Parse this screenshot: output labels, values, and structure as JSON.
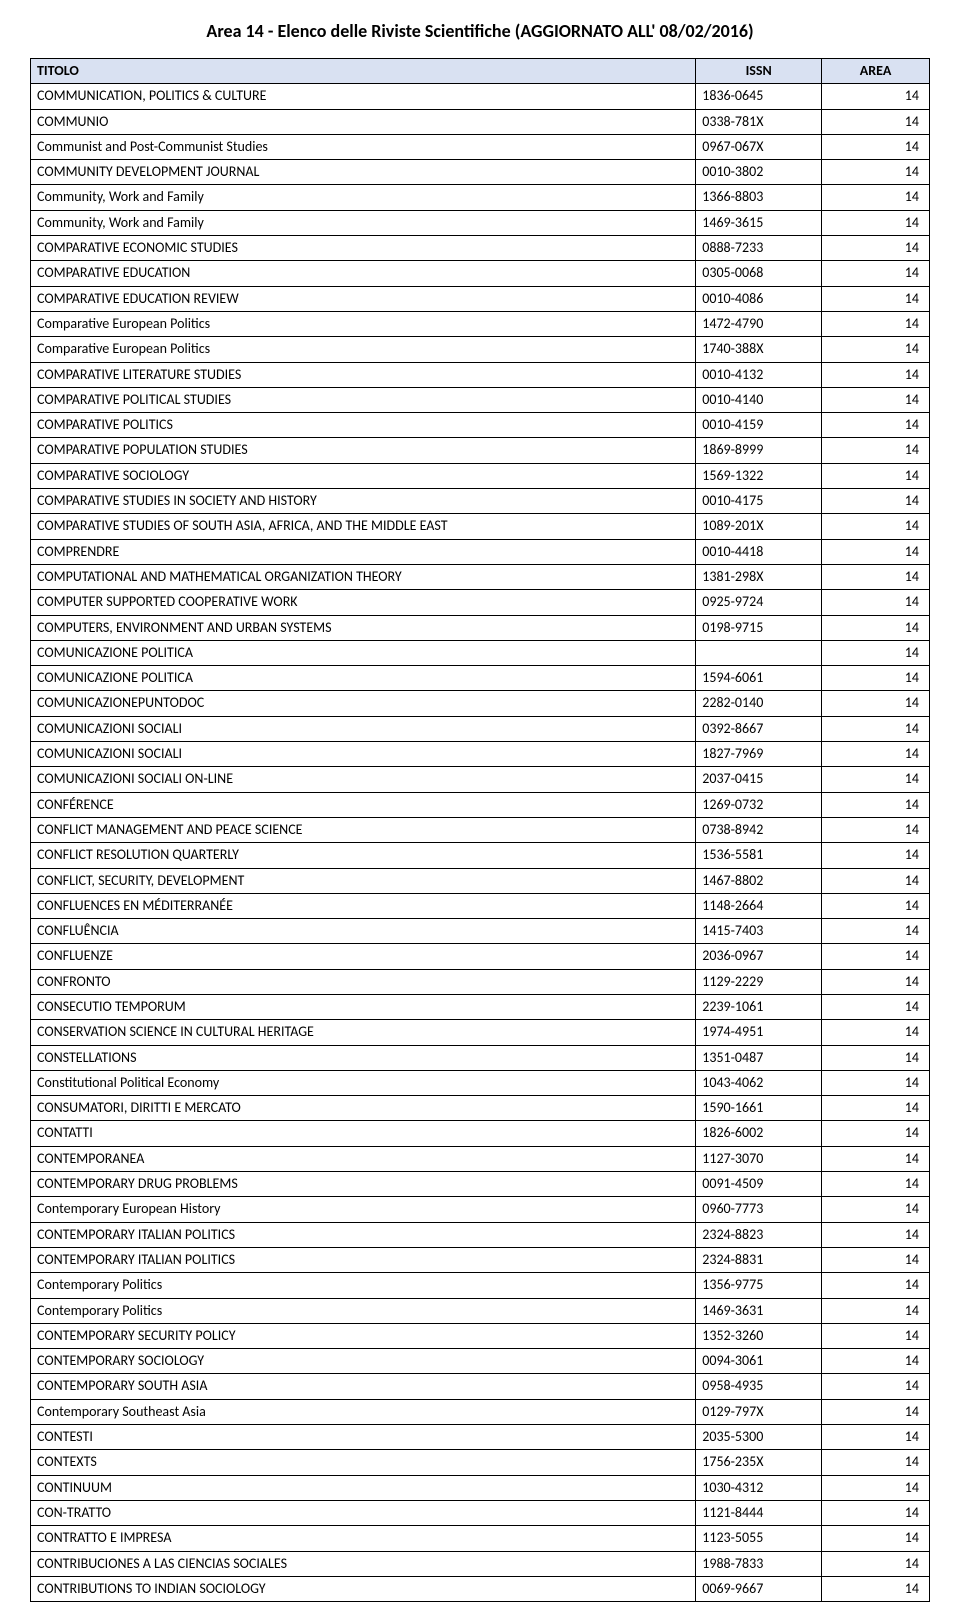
{
  "page_title": "Area 14 - Elenco delle Riviste Scientifiche (AGGIORNATO ALL' 08/02/2016)",
  "columns": [
    "TITOLO",
    "ISSN",
    "AREA"
  ],
  "rows": [
    [
      "COMMUNICATION, POLITICS & CULTURE",
      "1836-0645",
      "14"
    ],
    [
      "COMMUNIO",
      "0338-781X",
      "14"
    ],
    [
      "Communist and Post-Communist Studies",
      "0967-067X",
      "14"
    ],
    [
      "COMMUNITY DEVELOPMENT JOURNAL",
      "0010-3802",
      "14"
    ],
    [
      "Community, Work and Family",
      "1366-8803",
      "14"
    ],
    [
      "Community, Work and Family",
      "1469-3615",
      "14"
    ],
    [
      "COMPARATIVE ECONOMIC STUDIES",
      "0888-7233",
      "14"
    ],
    [
      "COMPARATIVE EDUCATION",
      "0305-0068",
      "14"
    ],
    [
      "COMPARATIVE EDUCATION REVIEW",
      "0010-4086",
      "14"
    ],
    [
      "Comparative European Politics",
      "1472-4790",
      "14"
    ],
    [
      "Comparative European Politics",
      "1740-388X",
      "14"
    ],
    [
      "COMPARATIVE LITERATURE STUDIES",
      "0010-4132",
      "14"
    ],
    [
      "COMPARATIVE POLITICAL STUDIES",
      "0010-4140",
      "14"
    ],
    [
      "COMPARATIVE POLITICS",
      "0010-4159",
      "14"
    ],
    [
      "COMPARATIVE POPULATION STUDIES",
      "1869-8999",
      "14"
    ],
    [
      "COMPARATIVE SOCIOLOGY",
      "1569-1322",
      "14"
    ],
    [
      "COMPARATIVE STUDIES IN SOCIETY AND HISTORY",
      "0010-4175",
      "14"
    ],
    [
      "COMPARATIVE STUDIES OF SOUTH ASIA, AFRICA, AND THE MIDDLE EAST",
      "1089-201X",
      "14"
    ],
    [
      "COMPRENDRE",
      "0010-4418",
      "14"
    ],
    [
      "COMPUTATIONAL AND MATHEMATICAL ORGANIZATION THEORY",
      "1381-298X",
      "14"
    ],
    [
      "COMPUTER SUPPORTED COOPERATIVE WORK",
      "0925-9724",
      "14"
    ],
    [
      "COMPUTERS, ENVIRONMENT AND URBAN SYSTEMS",
      "0198-9715",
      "14"
    ],
    [
      "COMUNICAZIONE POLITICA",
      "",
      "14"
    ],
    [
      "COMUNICAZIONE POLITICA",
      "1594-6061",
      "14"
    ],
    [
      "COMUNICAZIONEPUNTODOC",
      "2282-0140",
      "14"
    ],
    [
      "COMUNICAZIONI SOCIALI",
      "0392-8667",
      "14"
    ],
    [
      "COMUNICAZIONI SOCIALI",
      "1827-7969",
      "14"
    ],
    [
      "COMUNICAZIONI SOCIALI ON-LINE",
      "2037-0415",
      "14"
    ],
    [
      "CONFÉRENCE",
      "1269-0732",
      "14"
    ],
    [
      "CONFLICT MANAGEMENT AND PEACE SCIENCE",
      "0738-8942",
      "14"
    ],
    [
      "CONFLICT RESOLUTION QUARTERLY",
      "1536-5581",
      "14"
    ],
    [
      "CONFLICT, SECURITY, DEVELOPMENT",
      "1467-8802",
      "14"
    ],
    [
      "CONFLUENCES EN MÉDITERRANÉE",
      "1148-2664",
      "14"
    ],
    [
      "CONFLUÊNCIA",
      "1415-7403",
      "14"
    ],
    [
      "CONFLUENZE",
      "2036-0967",
      "14"
    ],
    [
      "CONFRONTO",
      "1129-2229",
      "14"
    ],
    [
      "CONSECUTIO TEMPORUM",
      "2239-1061",
      "14"
    ],
    [
      "CONSERVATION SCIENCE IN CULTURAL HERITAGE",
      "1974-4951",
      "14"
    ],
    [
      "CONSTELLATIONS",
      "1351-0487",
      "14"
    ],
    [
      "Constitutional Political Economy",
      "1043-4062",
      "14"
    ],
    [
      "CONSUMATORI, DIRITTI E MERCATO",
      "1590-1661",
      "14"
    ],
    [
      "CONTATTI",
      "1826-6002",
      "14"
    ],
    [
      "CONTEMPORANEA",
      "1127-3070",
      "14"
    ],
    [
      "CONTEMPORARY DRUG PROBLEMS",
      "0091-4509",
      "14"
    ],
    [
      "Contemporary European History",
      "0960-7773",
      "14"
    ],
    [
      "CONTEMPORARY ITALIAN POLITICS",
      "2324-8823",
      "14"
    ],
    [
      "CONTEMPORARY ITALIAN POLITICS",
      "2324-8831",
      "14"
    ],
    [
      "Contemporary Politics",
      "1356-9775",
      "14"
    ],
    [
      "Contemporary Politics",
      "1469-3631",
      "14"
    ],
    [
      "CONTEMPORARY SECURITY POLICY",
      "1352-3260",
      "14"
    ],
    [
      "CONTEMPORARY SOCIOLOGY",
      "0094-3061",
      "14"
    ],
    [
      "CONTEMPORARY SOUTH ASIA",
      "0958-4935",
      "14"
    ],
    [
      "Contemporary Southeast Asia",
      "0129-797X",
      "14"
    ],
    [
      "CONTESTI",
      "2035-5300",
      "14"
    ],
    [
      "CONTEXTS",
      "1756-235X",
      "14"
    ],
    [
      "CONTINUUM",
      "1030-4312",
      "14"
    ],
    [
      "CON-TRATTO",
      "1121-8444",
      "14"
    ],
    [
      "CONTRATTO E IMPRESA",
      "1123-5055",
      "14"
    ],
    [
      "CONTRIBUCIONES A LAS CIENCIAS SOCIALES",
      "1988-7833",
      "14"
    ],
    [
      "CONTRIBUTIONS TO INDIAN SOCIOLOGY",
      "0069-9667",
      "14"
    ]
  ]
}
